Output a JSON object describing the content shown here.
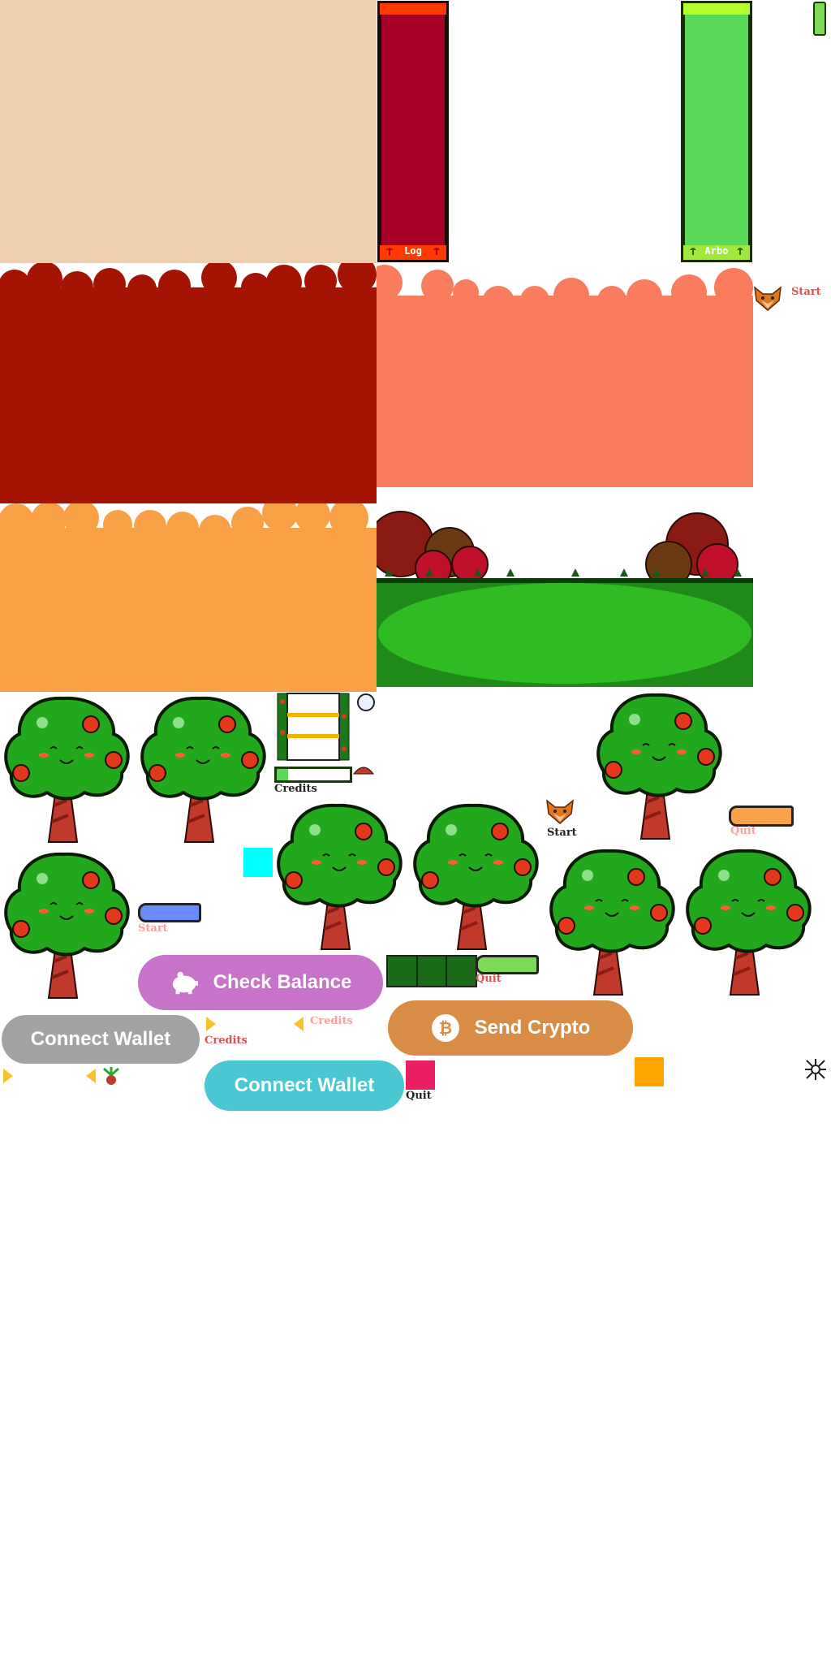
{
  "log_panel": {
    "label": "Log"
  },
  "arbo_panel": {
    "label": "Arbo"
  },
  "labels": {
    "start": "Start",
    "quit": "Quit",
    "credits": "Credits"
  },
  "buttons": {
    "check_balance": "Check Balance",
    "connect_wallet": "Connect Wallet",
    "send_crypto": "Send Crypto"
  },
  "colors": {
    "sand": "#f0cfae",
    "dark_red": "#a51302",
    "salmon": "#f97c5c",
    "orange": "#f9a146",
    "log_red": "#a60026",
    "arbo_green": "#59d957",
    "purple": "#c673c9",
    "gray": "#a3a3a3",
    "copper": "#d98c46",
    "teal": "#4bc7d2",
    "cyan_square": "#00ffff",
    "pink_square": "#e91e63",
    "orange_square": "#ffa500"
  },
  "icons": [
    "piggy-bank-icon",
    "bitcoin-icon",
    "fox-icon",
    "close-icon"
  ]
}
